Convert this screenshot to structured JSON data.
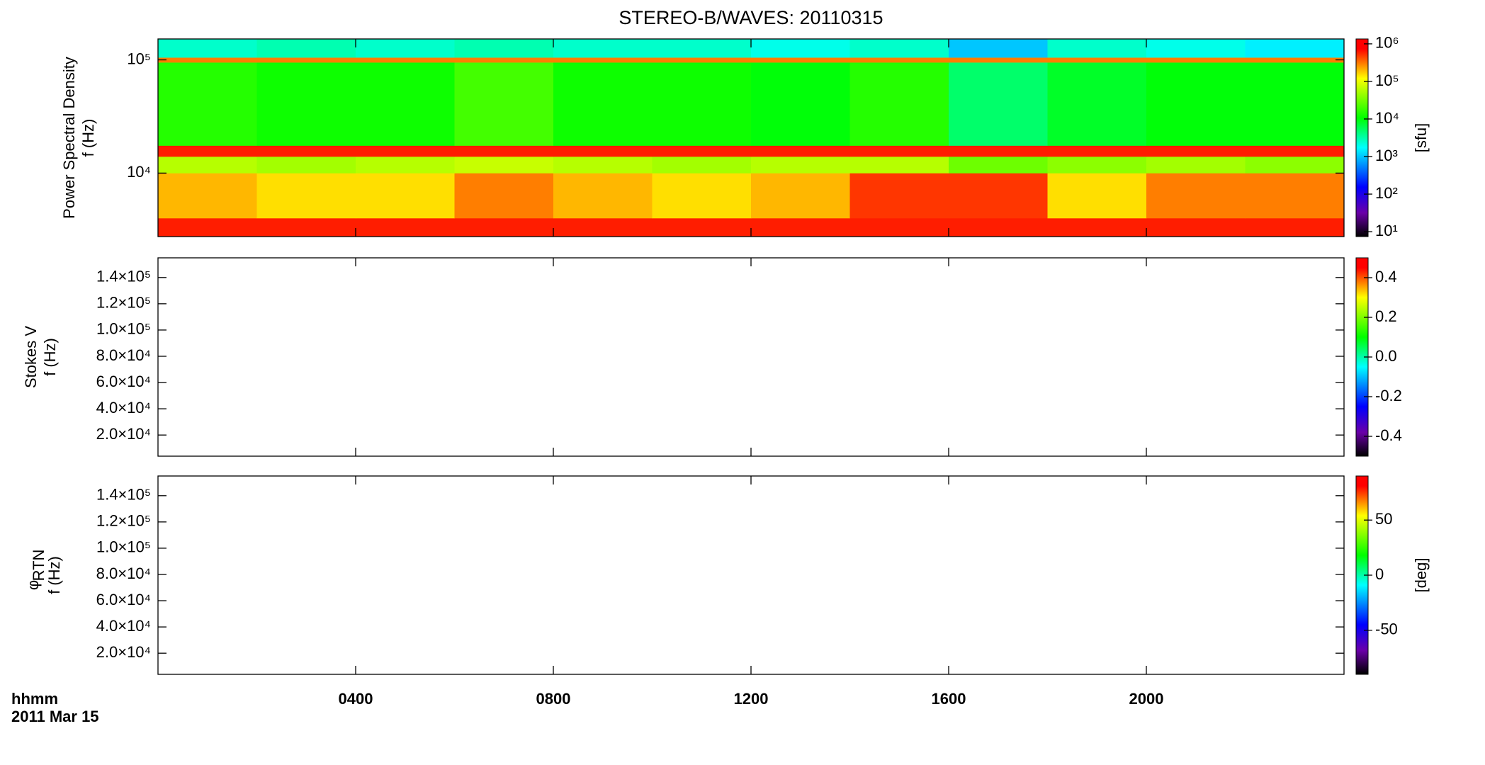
{
  "colormap": [
    {
      "pos": 0,
      "color": "#000000"
    },
    {
      "pos": 0.12,
      "color": "#6a00a8"
    },
    {
      "pos": 0.25,
      "color": "#0000ff"
    },
    {
      "pos": 0.45,
      "color": "#00ffff"
    },
    {
      "pos": 0.6,
      "color": "#00ff00"
    },
    {
      "pos": 0.8,
      "color": "#ffff00"
    },
    {
      "pos": 0.95,
      "color": "#ff0000"
    },
    {
      "pos": 1,
      "color": "#ff0000"
    }
  ],
  "chart_data": [
    {
      "type": "heatmap",
      "title": "STEREO-B/WAVES: 20110315",
      "ylabel": [
        "Power Spectral Density",
        "f (Hz)"
      ],
      "log_y": true,
      "ylim": [
        2750,
        153000
      ],
      "yticks": [
        {
          "value": 10000,
          "label": "10⁴"
        },
        {
          "value": 100000,
          "label": "10⁵"
        }
      ],
      "xlim": [
        0,
        24
      ],
      "x_edges": [
        0,
        2,
        4,
        6,
        8,
        10,
        12,
        14,
        16,
        18,
        20,
        22,
        24
      ],
      "y_edges": [
        2750,
        4000,
        10000,
        14000,
        17500,
        95000,
        105000,
        153000
      ],
      "values": [
        [
          600000,
          600000,
          600000,
          600000,
          600000,
          600000,
          600000,
          600000,
          600000,
          600000,
          600000,
          600000
        ],
        [
          200000,
          150000,
          150000,
          300000,
          200000,
          150000,
          200000,
          500000,
          500000,
          150000,
          300000,
          300000
        ],
        [
          60000,
          50000,
          60000,
          70000,
          60000,
          50000,
          60000,
          60000,
          30000,
          40000,
          50000,
          40000
        ],
        [
          600000,
          600000,
          600000,
          600000,
          600000,
          600000,
          600000,
          600000,
          600000,
          600000,
          600000,
          600000
        ],
        [
          15000,
          12000,
          12000,
          20000,
          12000,
          12000,
          10000,
          15000,
          5000,
          8000,
          10000,
          10000
        ],
        [
          300000,
          300000,
          300000,
          300000,
          300000,
          300000,
          300000,
          300000,
          300000,
          300000,
          300000,
          300000
        ],
        [
          2500,
          3000,
          2500,
          3000,
          2500,
          2500,
          2000,
          2500,
          1000,
          2500,
          2000,
          1500
        ]
      ],
      "colorbar": {
        "log": true,
        "clim": [
          7.4,
          1350000
        ],
        "label": "[sfu]",
        "ticks": [
          {
            "value": 10,
            "label": "10¹"
          },
          {
            "value": 100,
            "label": "10²"
          },
          {
            "value": 1000,
            "label": "10³"
          },
          {
            "value": 10000,
            "label": "10⁴"
          },
          {
            "value": 100000,
            "label": "10⁵"
          },
          {
            "value": 1000000,
            "label": "10⁶"
          }
        ]
      }
    },
    {
      "type": "heatmap",
      "ylabel": [
        "Stokes V",
        "f (Hz)"
      ],
      "log_y": false,
      "ylim": [
        3900,
        155000
      ],
      "yticks": [
        {
          "value": 20000,
          "label": "2.0×10⁴"
        },
        {
          "value": 40000,
          "label": "4.0×10⁴"
        },
        {
          "value": 60000,
          "label": "6.0×10⁴"
        },
        {
          "value": 80000,
          "label": "8.0×10⁴"
        },
        {
          "value": 100000,
          "label": "1.0×10⁵"
        },
        {
          "value": 120000,
          "label": "1.2×10⁵"
        },
        {
          "value": 140000,
          "label": "1.4×10⁵"
        }
      ],
      "xlim": [
        0,
        24
      ],
      "colorbar": {
        "log": false,
        "clim": [
          -0.5,
          0.5
        ],
        "ticks": [
          0.4,
          0.2,
          {
            "value": 0,
            "label": "0.0"
          },
          -0.2,
          -0.4
        ]
      }
    },
    {
      "type": "heatmap",
      "ylabel": [
        "φ",
        "f (Hz)"
      ],
      "ylabel_sub": "RTN",
      "log_y": false,
      "ylim": [
        3900,
        155000
      ],
      "yticks": [
        {
          "value": 20000,
          "label": "2.0×10⁴"
        },
        {
          "value": 40000,
          "label": "4.0×10⁴"
        },
        {
          "value": 60000,
          "label": "6.0×10⁴"
        },
        {
          "value": 80000,
          "label": "8.0×10⁴"
        },
        {
          "value": 100000,
          "label": "1.0×10⁵"
        },
        {
          "value": 120000,
          "label": "1.2×10⁵"
        },
        {
          "value": 140000,
          "label": "1.4×10⁵"
        }
      ],
      "xlim": [
        0,
        24
      ],
      "xticks": [
        {
          "value": 4,
          "label": "0400"
        },
        {
          "value": 8,
          "label": "0800"
        },
        {
          "value": 12,
          "label": "1200"
        },
        {
          "value": 16,
          "label": "1600"
        },
        {
          "value": 20,
          "label": "2000"
        }
      ],
      "xlabel": "hhmm",
      "date": "2011 Mar 15",
      "colorbar": {
        "log": false,
        "clim": [
          -90,
          90
        ],
        "label": "[deg]",
        "ticks": [
          50,
          0,
          -50
        ]
      }
    }
  ]
}
